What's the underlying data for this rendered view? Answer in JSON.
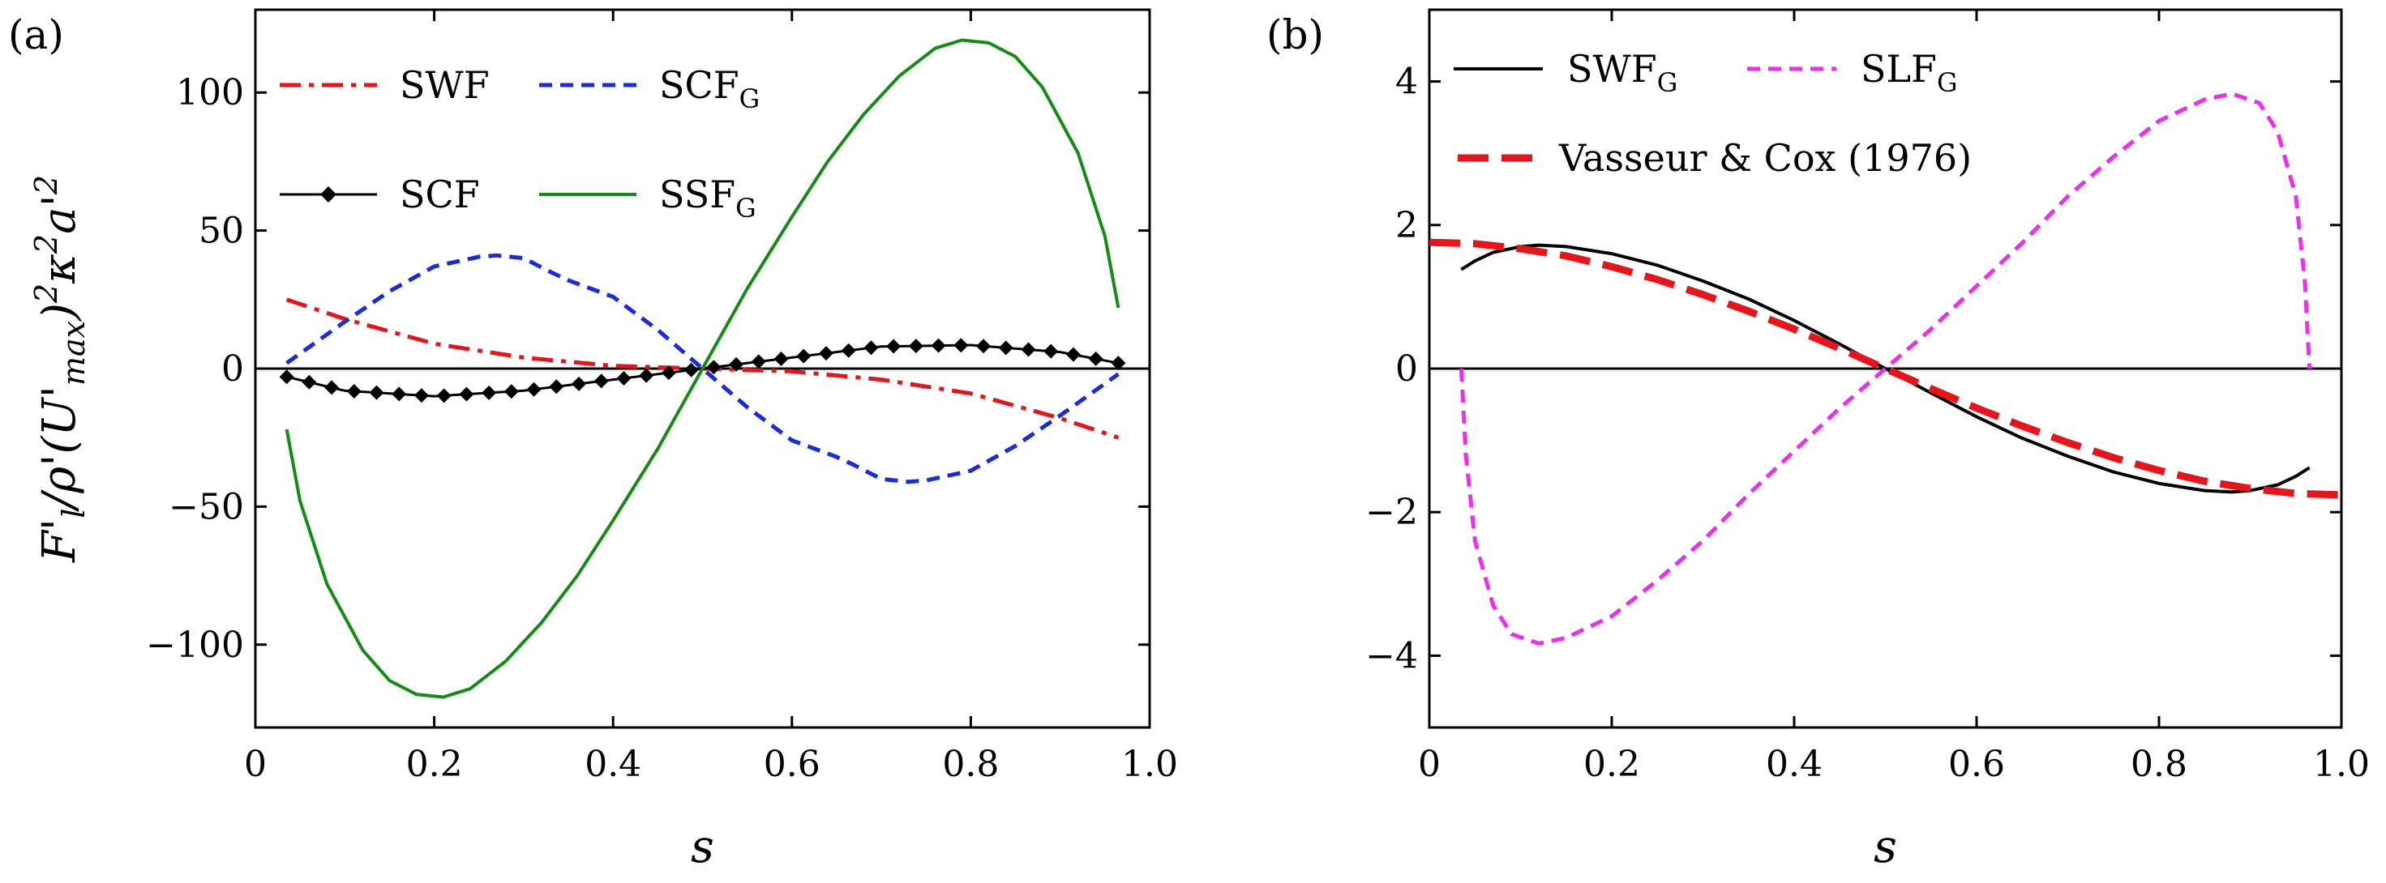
{
  "chart_data": [
    {
      "panel": "(a)",
      "type": "line",
      "xlabel": "s",
      "ylabel": "F'_l/ρ'(U'_max)^2κ^2a'^2",
      "xlim": [
        0,
        1.0
      ],
      "ylim": [
        -130,
        130
      ],
      "xticks": [
        "0",
        "0.2",
        "0.4",
        "0.6",
        "0.8",
        "1.0"
      ],
      "yticks": [
        "−100",
        "−50",
        "0",
        "50",
        "100"
      ],
      "ytick_values": [
        -100,
        -50,
        0,
        50,
        100
      ],
      "legend": {
        "position": "top-left",
        "columns": 2
      },
      "series": [
        {
          "name": "SWF",
          "color": "#e8141b",
          "style": "dash-dot",
          "x": [
            0.035,
            0.1,
            0.2,
            0.3,
            0.4,
            0.5,
            0.6,
            0.7,
            0.8,
            0.9,
            0.965
          ],
          "y": [
            25,
            18,
            9,
            4,
            1,
            0,
            -1,
            -4,
            -9,
            -18,
            -25
          ]
        },
        {
          "name": "SCF_G",
          "color": "#1a2bdc",
          "style": "dashed",
          "x": [
            0.035,
            0.1,
            0.15,
            0.2,
            0.25,
            0.27,
            0.3,
            0.33,
            0.35,
            0.4,
            0.45,
            0.5,
            0.55,
            0.6,
            0.65,
            0.67,
            0.7,
            0.73,
            0.75,
            0.8,
            0.85,
            0.9,
            0.965
          ],
          "y": [
            2,
            17,
            28,
            37,
            40.5,
            41,
            40,
            35,
            32,
            26,
            14,
            0,
            -14,
            -26,
            -32,
            -35,
            -40,
            -41,
            -40.5,
            -37,
            -28,
            -17,
            -2
          ]
        },
        {
          "name": "SCF",
          "color": "#000000",
          "style": "solid-diamond",
          "x": [
            0.035,
            0.1,
            0.2,
            0.3,
            0.4,
            0.5,
            0.6,
            0.7,
            0.8,
            0.9,
            0.965
          ],
          "y": [
            -3,
            -8,
            -10,
            -8,
            -4,
            0,
            4,
            8,
            8.5,
            6,
            2
          ]
        },
        {
          "name": "SSF_G",
          "color": "#138c13",
          "style": "solid",
          "x": [
            0.035,
            0.05,
            0.08,
            0.12,
            0.15,
            0.18,
            0.21,
            0.24,
            0.28,
            0.32,
            0.36,
            0.4,
            0.45,
            0.5,
            0.55,
            0.6,
            0.64,
            0.68,
            0.72,
            0.76,
            0.79,
            0.82,
            0.85,
            0.88,
            0.92,
            0.95,
            0.965
          ],
          "y": [
            -22,
            -48,
            -78,
            -102,
            -113,
            -118,
            -119,
            -116,
            -106,
            -92,
            -75,
            -55,
            -29,
            0,
            29,
            55,
            75,
            92,
            106,
            116,
            119,
            118,
            113,
            102,
            78,
            48,
            22
          ]
        }
      ]
    },
    {
      "panel": "(b)",
      "type": "line",
      "xlabel": "s",
      "ylabel": "",
      "xlim": [
        0,
        1.0
      ],
      "ylim": [
        -5,
        5
      ],
      "xticks": [
        "0",
        "0.2",
        "0.4",
        "0.6",
        "0.8",
        "1.0"
      ],
      "yticks": [
        "−4",
        "−2",
        "0",
        "2",
        "4"
      ],
      "ytick_values": [
        -4,
        -2,
        0,
        2,
        4
      ],
      "legend": {
        "position": "top-left"
      },
      "series": [
        {
          "name": "SWF_G",
          "color": "#000000",
          "style": "solid",
          "x": [
            0.035,
            0.05,
            0.07,
            0.1,
            0.12,
            0.15,
            0.2,
            0.25,
            0.3,
            0.35,
            0.4,
            0.45,
            0.5,
            0.55,
            0.6,
            0.65,
            0.7,
            0.75,
            0.8,
            0.85,
            0.88,
            0.9,
            0.93,
            0.95,
            0.965
          ],
          "y": [
            1.38,
            1.5,
            1.62,
            1.7,
            1.72,
            1.7,
            1.6,
            1.44,
            1.22,
            0.97,
            0.67,
            0.34,
            0,
            -0.34,
            -0.67,
            -0.97,
            -1.22,
            -1.44,
            -1.6,
            -1.7,
            -1.72,
            -1.7,
            -1.62,
            -1.5,
            -1.38
          ]
        },
        {
          "name": "SLF_G",
          "color": "#ef2ded",
          "style": "dashed",
          "x": [
            0.035,
            0.04,
            0.05,
            0.07,
            0.09,
            0.12,
            0.15,
            0.2,
            0.25,
            0.3,
            0.35,
            0.4,
            0.45,
            0.5,
            0.55,
            0.6,
            0.65,
            0.7,
            0.75,
            0.8,
            0.85,
            0.88,
            0.91,
            0.93,
            0.95,
            0.96,
            0.965
          ],
          "y": [
            0,
            -1.2,
            -2.4,
            -3.3,
            -3.7,
            -3.83,
            -3.75,
            -3.45,
            -2.95,
            -2.4,
            -1.75,
            -1.15,
            -0.55,
            0,
            0.55,
            1.15,
            1.75,
            2.4,
            2.95,
            3.45,
            3.75,
            3.83,
            3.7,
            3.3,
            2.4,
            1.2,
            0
          ]
        },
        {
          "name": "Vasseur & Cox (1976)",
          "color": "#e8141b",
          "style": "long-dash",
          "x": [
            0.0,
            0.05,
            0.1,
            0.15,
            0.2,
            0.25,
            0.3,
            0.35,
            0.4,
            0.45,
            0.5,
            0.55,
            0.6,
            0.65,
            0.7,
            0.75,
            0.8,
            0.85,
            0.9,
            0.95,
            1.0
          ],
          "y": [
            1.76,
            1.74,
            1.67,
            1.57,
            1.42,
            1.24,
            1.03,
            0.8,
            0.55,
            0.28,
            0,
            -0.28,
            -0.55,
            -0.8,
            -1.03,
            -1.24,
            -1.42,
            -1.57,
            -1.67,
            -1.74,
            -1.76
          ]
        }
      ]
    }
  ]
}
